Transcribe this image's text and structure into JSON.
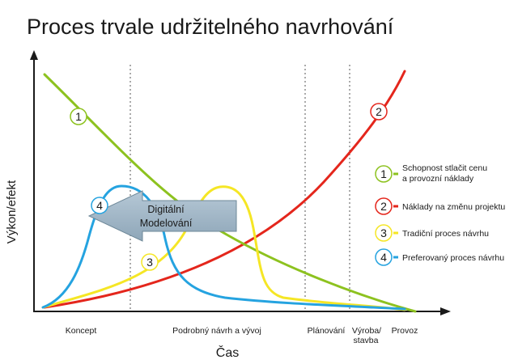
{
  "title": "Proces trvale udržitelného navrhování",
  "axes": {
    "ylabel": "Výkon/efekt",
    "xlabel": "Čas"
  },
  "phases": [
    {
      "label": "Koncept"
    },
    {
      "label": "Podrobný návrh a vývoj"
    },
    {
      "label": "Plánování"
    },
    {
      "label_lines": [
        "Výroba/",
        "stavba"
      ]
    },
    {
      "label": "Provoz"
    }
  ],
  "arrow": {
    "label_lines": [
      "Digitální",
      "Modelování"
    ]
  },
  "curves": [
    {
      "number": "1",
      "color": "#8dc21f",
      "legend_lines": [
        "Schopnost stlačit cenu",
        "a provozní náklady"
      ]
    },
    {
      "number": "2",
      "color": "#e4261c",
      "legend_lines": [
        "Náklady na změnu projektu"
      ]
    },
    {
      "number": "3",
      "color": "#f5e625",
      "legend_lines": [
        "Tradiční proces návrhu"
      ]
    },
    {
      "number": "4",
      "color": "#25a3e0",
      "legend_lines": [
        "Preferovaný proces návrhu"
      ]
    }
  ]
}
